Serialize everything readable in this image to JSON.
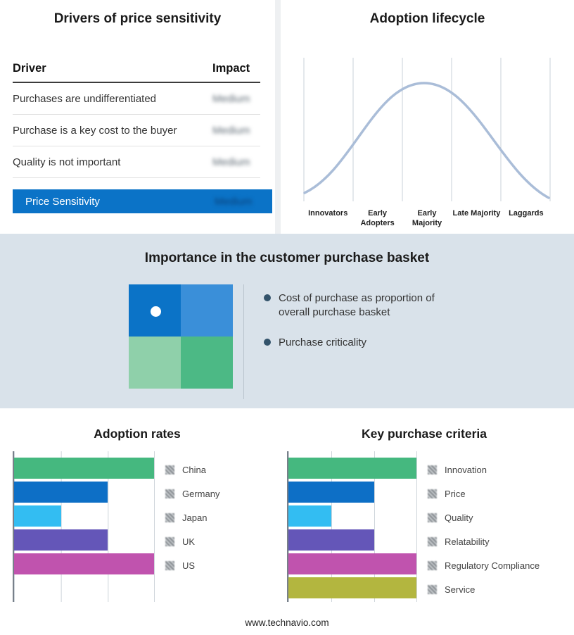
{
  "drivers_table": {
    "title": "Drivers of price sensitivity",
    "headers": {
      "driver": "Driver",
      "impact": "Impact"
    },
    "rows": [
      {
        "driver": "Purchases are undifferentiated",
        "impact": "Medium"
      },
      {
        "driver": "Purchase is a key cost to the buyer",
        "impact": "Medium"
      },
      {
        "driver": "Quality is not important",
        "impact": "Medium"
      }
    ],
    "highlight": {
      "driver": "Price Sensitivity",
      "impact": "Medium"
    },
    "highlight_color": "#0b73c7",
    "impact_values_redacted": true
  },
  "importance_panel": {
    "title": "Importance in the customer purchase basket",
    "bullets": [
      "Cost of purchase as proportion of overall purchase basket",
      "Purchase criticality"
    ],
    "background": "#d9e2ea",
    "quadrant": {
      "top_left": "#0b73c7",
      "top_right": "#3a8fd9",
      "bottom_left": "#8fd0aa",
      "bottom_right": "#4cb985"
    }
  },
  "chart_data": [
    {
      "type": "line",
      "title": "Adoption lifecycle",
      "shape": "bell-curve",
      "categories": [
        "Innovators",
        "Early Adopters",
        "Early Majority",
        "Late Majority",
        "Laggards"
      ],
      "line_color": "#aabdd8",
      "grid": true,
      "legend_position": "none"
    },
    {
      "type": "bar",
      "title": "Adoption rates",
      "orientation": "horizontal",
      "categories": [
        "China",
        "Germany",
        "Japan",
        "UK",
        "US"
      ],
      "values": [
        3,
        2,
        1,
        2,
        3
      ],
      "xlim": [
        0,
        3
      ],
      "colors": [
        "#45b87f",
        "#0d6fc6",
        "#33bdf2",
        "#6456b8",
        "#c053ae"
      ],
      "legend_position": "right",
      "value_labels": "redacted",
      "grid": true
    },
    {
      "type": "bar",
      "title": "Key purchase criteria",
      "orientation": "horizontal",
      "categories": [
        "Innovation",
        "Price",
        "Quality",
        "Relatability",
        "Regulatory Compliance",
        "Service"
      ],
      "values": [
        3,
        2,
        1,
        2,
        3,
        3
      ],
      "xlim": [
        0,
        3
      ],
      "colors": [
        "#45b87f",
        "#0d6fc6",
        "#33bdf2",
        "#6456b8",
        "#c053ae",
        "#b3b63f"
      ],
      "legend_position": "right",
      "value_labels": "redacted",
      "grid": true
    }
  ],
  "footer": {
    "url": "www.technavio.com"
  }
}
